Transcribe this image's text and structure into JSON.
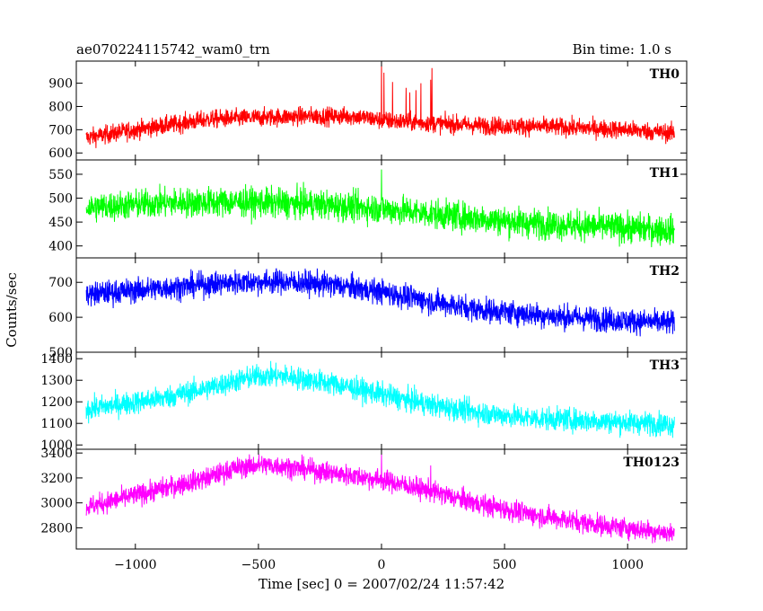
{
  "header": {
    "title": "ae070224115742_wam0_trn",
    "bin_time": "Bin time: 1.0 s"
  },
  "chart_data": {
    "type": "line",
    "title": "ae070224115742_wam0_trn",
    "subtitle": "Bin time: 1.0 s",
    "xlabel": "Time [sec] 0 = 2007/02/24 11:57:42",
    "ylabel": "Counts/sec",
    "xlim": [
      -1240,
      1240
    ],
    "x_ticks": [
      -1000,
      -500,
      0,
      500,
      1000
    ],
    "x_tick_labels": [
      "−1000",
      "−500",
      "0",
      "500",
      "1000"
    ],
    "x_range": [
      -1200,
      1190
    ],
    "bin": 1.0,
    "panels": [
      {
        "name": "TH0",
        "color": "#ff0000",
        "ylim": [
          570,
          995
        ],
        "y_ticks": [
          600,
          700,
          800,
          900
        ],
        "profile": [
          [
            -1200,
            665
          ],
          [
            -1000,
            700
          ],
          [
            -700,
            745
          ],
          [
            -500,
            752
          ],
          [
            -300,
            758
          ],
          [
            -100,
            758
          ],
          [
            0,
            740
          ],
          [
            200,
            728
          ],
          [
            400,
            718
          ],
          [
            700,
            712
          ],
          [
            1000,
            700
          ],
          [
            1190,
            685
          ]
        ],
        "noise": 28,
        "spikes": [
          [
            0,
            990
          ],
          [
            10,
            945
          ],
          [
            45,
            905
          ],
          [
            100,
            880
          ],
          [
            115,
            860
          ],
          [
            140,
            870
          ],
          [
            160,
            900
          ],
          [
            200,
            915
          ],
          [
            205,
            965
          ]
        ]
      },
      {
        "name": "TH1",
        "color": "#00ff00",
        "ylim": [
          375,
          580
        ],
        "y_ticks": [
          400,
          450,
          500,
          550
        ],
        "profile": [
          [
            -1200,
            480
          ],
          [
            -900,
            490
          ],
          [
            -600,
            492
          ],
          [
            -300,
            488
          ],
          [
            0,
            478
          ],
          [
            300,
            462
          ],
          [
            600,
            448
          ],
          [
            900,
            440
          ],
          [
            1190,
            433
          ]
        ],
        "noise": 22,
        "spikes": [
          [
            0,
            560
          ]
        ]
      },
      {
        "name": "TH2",
        "color": "#0000ff",
        "ylim": [
          500,
          770
        ],
        "y_ticks": [
          500,
          600,
          700
        ],
        "profile": [
          [
            -1200,
            665
          ],
          [
            -900,
            683
          ],
          [
            -600,
            700
          ],
          [
            -400,
            702
          ],
          [
            -200,
            693
          ],
          [
            0,
            673
          ],
          [
            200,
            645
          ],
          [
            400,
            622
          ],
          [
            700,
            603
          ],
          [
            1000,
            590
          ],
          [
            1190,
            583
          ]
        ],
        "noise": 25,
        "spikes": []
      },
      {
        "name": "TH3",
        "color": "#00ffff",
        "ylim": [
          980,
          1430
        ],
        "y_ticks": [
          1000,
          1100,
          1200,
          1300,
          1400
        ],
        "profile": [
          [
            -1200,
            1165
          ],
          [
            -900,
            1215
          ],
          [
            -700,
            1265
          ],
          [
            -600,
            1295
          ],
          [
            -500,
            1320
          ],
          [
            -400,
            1320
          ],
          [
            -200,
            1285
          ],
          [
            0,
            1235
          ],
          [
            200,
            1185
          ],
          [
            400,
            1150
          ],
          [
            600,
            1125
          ],
          [
            900,
            1110
          ],
          [
            1190,
            1095
          ]
        ],
        "noise": 38,
        "spikes": []
      },
      {
        "name": "TH0123",
        "color": "#ff00ff",
        "ylim": [
          2630,
          3430
        ],
        "y_ticks": [
          2800,
          3000,
          3200,
          3400
        ],
        "profile": [
          [
            -1200,
            2965
          ],
          [
            -1000,
            3060
          ],
          [
            -700,
            3205
          ],
          [
            -600,
            3275
          ],
          [
            -500,
            3305
          ],
          [
            -400,
            3295
          ],
          [
            -200,
            3240
          ],
          [
            0,
            3185
          ],
          [
            200,
            3095
          ],
          [
            400,
            2990
          ],
          [
            600,
            2910
          ],
          [
            900,
            2820
          ],
          [
            1190,
            2755
          ]
        ],
        "noise": 60,
        "spikes": [
          [
            0,
            3405
          ],
          [
            200,
            3300
          ]
        ]
      }
    ]
  }
}
